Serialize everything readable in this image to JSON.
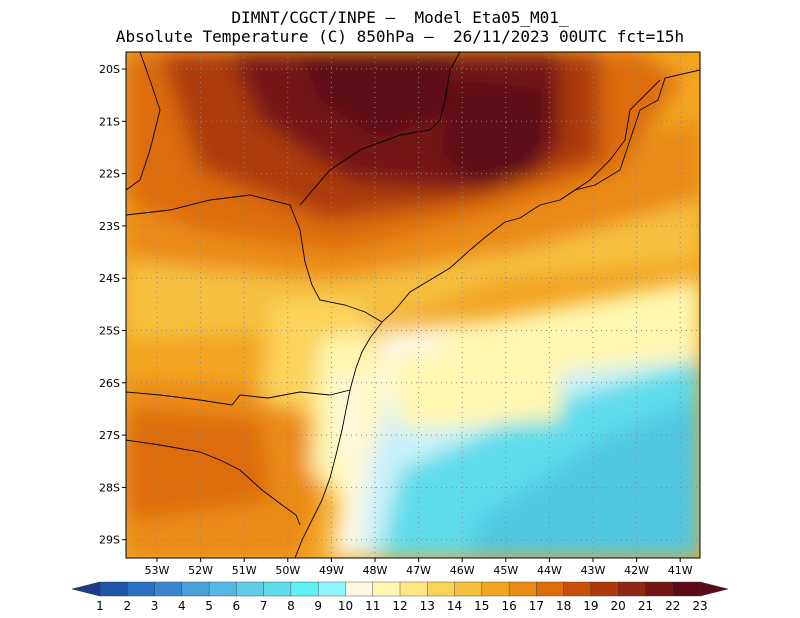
{
  "header": {
    "line1": "DIMNT/CGCT/INPE –  Model Eta05_M01_",
    "line2": "Absolute Temperature (C) 850hPa –  26/11/2023 00UTC fct=15h"
  },
  "map": {
    "lat_labels": [
      "20S",
      "21S",
      "22S",
      "23S",
      "24S",
      "25S",
      "26S",
      "27S",
      "28S",
      "29S"
    ],
    "lon_labels": [
      "53W",
      "52W",
      "51W",
      "50W",
      "49W",
      "48W",
      "47W",
      "46W",
      "45W",
      "44W",
      "43W",
      "42W",
      "41W"
    ],
    "grid": "dotted"
  },
  "colorbar": {
    "labels": [
      "1",
      "2",
      "3",
      "4",
      "5",
      "6",
      "7",
      "8",
      "9",
      "10",
      "11",
      "12",
      "13",
      "14",
      "15",
      "16",
      "17",
      "18",
      "19",
      "20",
      "21",
      "22",
      "23"
    ],
    "colors": [
      "#1a3d8f",
      "#1f55a8",
      "#2a6fc0",
      "#3b87cf",
      "#4aa0db",
      "#55b8e4",
      "#5fcce8",
      "#5fdcea",
      "#5ff0f5",
      "#8ff5fa",
      "#fdf8e1",
      "#fff7b0",
      "#ffe680",
      "#fbd35b",
      "#f6bf3d",
      "#f2a521",
      "#eb8a14",
      "#dd6c0c",
      "#c8500a",
      "#ad3a0d",
      "#8f2711",
      "#751713",
      "#5c0a16"
    ]
  }
}
